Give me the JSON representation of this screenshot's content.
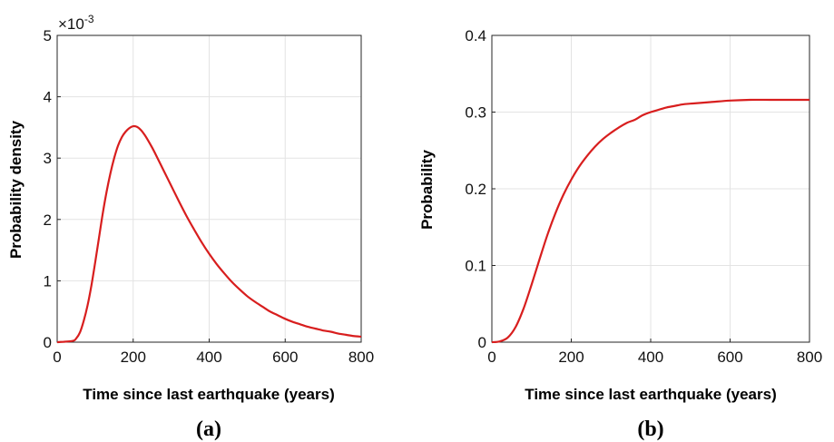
{
  "chart_data": [
    {
      "type": "line",
      "caption": "(a)",
      "xlabel": "Time since last earthquake (years)",
      "ylabel": "Probability density",
      "xlim": [
        0,
        800
      ],
      "ylim": [
        0,
        5
      ],
      "xticks": [
        "0",
        "200",
        "400",
        "600",
        "800"
      ],
      "yticks": [
        "0",
        "1",
        "2",
        "3",
        "4",
        "5"
      ],
      "multiplier_base": "×10",
      "multiplier_exp": "-3",
      "grid": true,
      "color": "#d81e1e",
      "series": [
        {
          "x": [
            0,
            40,
            50,
            60,
            70,
            80,
            90,
            100,
            110,
            120,
            130,
            140,
            150,
            160,
            170,
            180,
            190,
            200,
            210,
            220,
            230,
            240,
            250,
            260,
            280,
            300,
            320,
            340,
            360,
            380,
            400,
            420,
            440,
            460,
            480,
            500,
            520,
            540,
            560,
            580,
            600,
            620,
            640,
            660,
            680,
            700,
            720,
            740,
            760,
            780,
            800
          ],
          "y": [
            0,
            0.02,
            0.06,
            0.16,
            0.35,
            0.6,
            0.92,
            1.3,
            1.7,
            2.1,
            2.45,
            2.75,
            3.0,
            3.2,
            3.34,
            3.43,
            3.49,
            3.52,
            3.51,
            3.46,
            3.38,
            3.28,
            3.17,
            3.05,
            2.8,
            2.55,
            2.3,
            2.06,
            1.84,
            1.63,
            1.44,
            1.27,
            1.12,
            0.98,
            0.86,
            0.75,
            0.66,
            0.58,
            0.5,
            0.44,
            0.38,
            0.33,
            0.29,
            0.25,
            0.22,
            0.19,
            0.17,
            0.14,
            0.12,
            0.1,
            0.09
          ]
        }
      ]
    },
    {
      "type": "line",
      "caption": "(b)",
      "xlabel": "Time since last earthquake (years)",
      "ylabel": "Probability",
      "xlim": [
        0,
        800
      ],
      "ylim": [
        0,
        0.4
      ],
      "xticks": [
        "0",
        "200",
        "400",
        "600",
        "800"
      ],
      "yticks": [
        "0",
        "0.1",
        "0.2",
        "0.3",
        "0.4"
      ],
      "grid": true,
      "color": "#d81e1e",
      "series": [
        {
          "x": [
            0,
            20,
            40,
            60,
            80,
            100,
            120,
            140,
            160,
            180,
            200,
            220,
            240,
            260,
            280,
            300,
            320,
            340,
            360,
            380,
            400,
            420,
            440,
            460,
            480,
            500,
            550,
            600,
            650,
            700,
            750,
            800
          ],
          "y": [
            0,
            0.001,
            0.006,
            0.02,
            0.044,
            0.075,
            0.108,
            0.14,
            0.168,
            0.192,
            0.212,
            0.229,
            0.243,
            0.255,
            0.265,
            0.273,
            0.28,
            0.286,
            0.29,
            0.296,
            0.3,
            0.303,
            0.306,
            0.308,
            0.31,
            0.311,
            0.313,
            0.315,
            0.316,
            0.316,
            0.316,
            0.316
          ]
        }
      ]
    }
  ]
}
